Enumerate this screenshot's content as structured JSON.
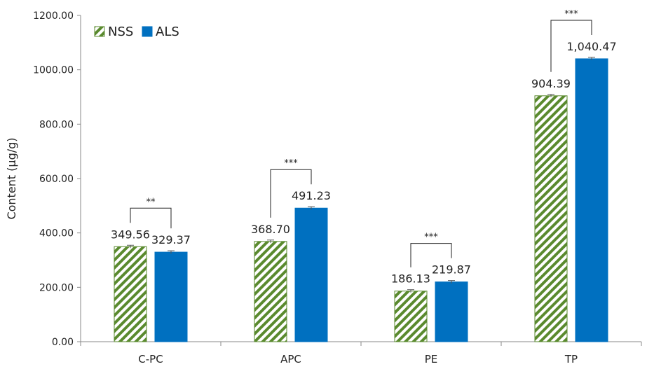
{
  "chart_data": {
    "type": "bar",
    "title": "",
    "xlabel": "",
    "ylabel": "Content (μg/g)",
    "ylim": [
      0,
      1200
    ],
    "yticks": [
      "0.00",
      "200.00",
      "400.00",
      "600.00",
      "800.00",
      "1000.00",
      "1200.00"
    ],
    "categories": [
      "C-PC",
      "APC",
      "PE",
      "TP"
    ],
    "legend_position": "top-left",
    "series": [
      {
        "name": "NSS",
        "pattern": "diagonal-hatch",
        "color": "#5a8a2e",
        "values": [
          349.56,
          368.7,
          186.13,
          904.39
        ],
        "labels": [
          "349.56",
          "368.70",
          "186.13",
          "904.39"
        ]
      },
      {
        "name": "ALS",
        "pattern": "solid",
        "color": "#0070c0",
        "values": [
          329.37,
          491.23,
          219.87,
          1040.47
        ],
        "labels": [
          "329.37",
          "491.23",
          "219.87",
          "1,040.47"
        ]
      }
    ],
    "significance": [
      "**",
      "***",
      "***",
      "***"
    ]
  }
}
